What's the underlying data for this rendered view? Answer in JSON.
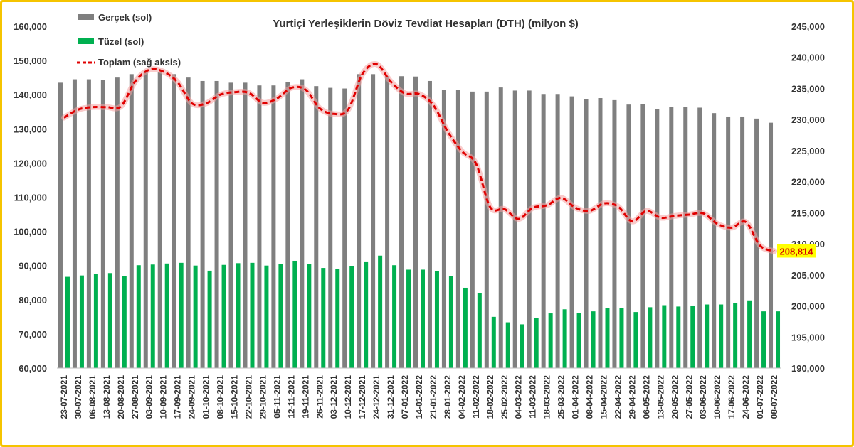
{
  "chart_data": {
    "type": "bar",
    "title": "Yurtiçi Yerleşiklerin Döviz Tevdiat Hesapları (DTH) (milyon $)",
    "categories": [
      "23-07-2021",
      "30-07-2021",
      "06-08-2021",
      "13-08-2021",
      "20-08-2021",
      "27-08-2021",
      "03-09-2021",
      "10-09-2021",
      "17-09-2021",
      "24-09-2021",
      "01-10-2021",
      "08-10-2021",
      "15-10-2021",
      "22-10-2021",
      "29-10-2021",
      "05-11-2021",
      "12-11-2021",
      "19-11-2021",
      "26-11-2021",
      "03-12-2021",
      "10-12-2021",
      "17-12-2021",
      "24-12-2021",
      "31-12-2021",
      "07-01-2022",
      "14-01-2022",
      "21-01-2022",
      "28-01-2022",
      "04-02-2022",
      "11-02-2022",
      "18-02-2022",
      "25-02-2022",
      "04-03-2022",
      "11-03-2022",
      "18-03-2022",
      "25-03-2022",
      "01-04-2022",
      "08-04-2022",
      "15-04-2022",
      "22-04-2022",
      "29-04-2022",
      "06-05-2022",
      "13-05-2022",
      "20-05-2022",
      "27-05-2022",
      "03-06-2022",
      "10-06-2022",
      "17-06-2022",
      "24-06-2022",
      "01-07-2022",
      "08-07-2022"
    ],
    "series": [
      {
        "name": "Gerçek (sol)",
        "axis": "left",
        "color": "#7f7f7f",
        "values": [
          143500,
          144500,
          144500,
          144300,
          145000,
          146000,
          146800,
          146500,
          146000,
          145000,
          144000,
          144000,
          143500,
          143500,
          142700,
          142700,
          143700,
          144500,
          142500,
          142000,
          141800,
          146000,
          146000,
          145400,
          145400,
          145300,
          144000,
          141300,
          141300,
          140900,
          140900,
          142100,
          141200,
          141200,
          140200,
          140200,
          139500,
          138700,
          139000,
          138400,
          137100,
          137300,
          135700,
          136400,
          136400,
          136200,
          134600,
          133600,
          133600,
          133000,
          131800
        ]
      },
      {
        "name": "Tüzel (sol)",
        "axis": "left",
        "color": "#00b050",
        "values": [
          86700,
          87100,
          87500,
          87800,
          87000,
          90100,
          90300,
          90600,
          90800,
          90000,
          88500,
          90200,
          90700,
          90800,
          90000,
          90400,
          91400,
          90500,
          89300,
          88900,
          89800,
          91200,
          92900,
          90100,
          88800,
          88800,
          88300,
          86900,
          83500,
          82000,
          75000,
          73400,
          72800,
          74600,
          76000,
          77200,
          76200,
          76600,
          77600,
          77500,
          76400,
          77800,
          78400,
          78000,
          78300,
          78600,
          78600,
          79000,
          79800,
          76600,
          76600
        ]
      },
      {
        "name": "Toplam (sağ aksis)",
        "axis": "right",
        "type": "line",
        "color": "#e00000",
        "values": [
          230300,
          231600,
          232000,
          232000,
          232100,
          236100,
          238000,
          237700,
          236000,
          232600,
          232600,
          234000,
          234400,
          234300,
          232700,
          233400,
          235100,
          234800,
          231800,
          230900,
          231600,
          237300,
          238900,
          236100,
          234200,
          234100,
          232300,
          228100,
          224900,
          222900,
          215900,
          215600,
          214000,
          215800,
          216200,
          217400,
          215800,
          215300,
          216500,
          216000,
          213600,
          215300,
          214200,
          214500,
          214700,
          214900,
          213200,
          212600,
          213500,
          209700,
          208814
        ]
      }
    ],
    "left_axis": {
      "ylim": [
        60000,
        160000
      ],
      "ticks": [
        "60,000",
        "70,000",
        "80,000",
        "90,000",
        "100,000",
        "110,000",
        "120,000",
        "130,000",
        "140,000",
        "150,000",
        "160,000"
      ]
    },
    "right_axis": {
      "ylim": [
        190000,
        245000
      ],
      "ticks": [
        "190,000",
        "195,000",
        "200,000",
        "205,000",
        "210,000",
        "215,000",
        "220,000",
        "225,000",
        "230,000",
        "235,000",
        "240,000",
        "245,000"
      ]
    },
    "last_value_label": "208,814",
    "legend_position": "top-left",
    "grid": false
  }
}
